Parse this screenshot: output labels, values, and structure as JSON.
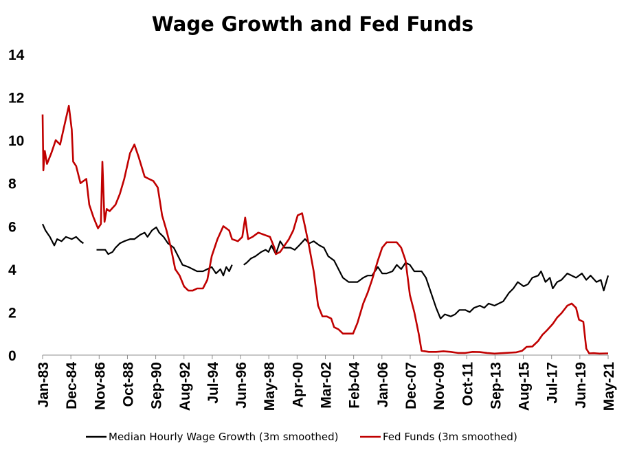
{
  "chart_data": {
    "type": "line",
    "title": "Wage Growth and Fed Funds",
    "xlabel": "",
    "ylabel": "",
    "ylim": [
      0,
      14
    ],
    "yticks": [
      "0",
      "2",
      "4",
      "6",
      "8",
      "10",
      "12",
      "14"
    ],
    "xticks": [
      "Jan-83",
      "Dec-84",
      "Nov-86",
      "Oct-88",
      "Sep-90",
      "Aug-92",
      "Jul-94",
      "Jun-96",
      "May-98",
      "Apr-00",
      "Mar-02",
      "Feb-04",
      "Jan-06",
      "Dec-07",
      "Nov-09",
      "Oct-11",
      "Sep-13",
      "Aug-15",
      "Jul-17",
      "Jun-19",
      "May-21"
    ],
    "legend_position": "bottom",
    "grid": false,
    "series": [
      {
        "name": "Median Hourly Wage Growth (3m smoothed)",
        "color": "#000000",
        "points": [
          [
            1983.0,
            6.1
          ],
          [
            1983.2,
            5.8
          ],
          [
            1983.5,
            5.5
          ],
          [
            1983.8,
            5.1
          ],
          [
            1984.0,
            5.4
          ],
          [
            1984.3,
            5.3
          ],
          [
            1984.6,
            5.5
          ],
          [
            1985.0,
            5.4
          ],
          [
            1985.3,
            5.5
          ],
          [
            1985.6,
            5.3
          ],
          [
            1985.8,
            5.2
          ],
          null,
          [
            1986.7,
            4.9
          ],
          [
            1987.0,
            4.9
          ],
          [
            1987.3,
            4.9
          ],
          [
            1987.5,
            4.7
          ],
          [
            1987.8,
            4.8
          ],
          [
            1988.0,
            5.0
          ],
          [
            1988.3,
            5.2
          ],
          [
            1988.6,
            5.3
          ],
          [
            1989.0,
            5.4
          ],
          [
            1989.3,
            5.4
          ],
          [
            1989.7,
            5.6
          ],
          [
            1990.0,
            5.7
          ],
          [
            1990.2,
            5.5
          ],
          [
            1990.5,
            5.8
          ],
          [
            1990.8,
            5.95
          ],
          [
            1991.0,
            5.7
          ],
          [
            1991.3,
            5.5
          ],
          [
            1991.6,
            5.2
          ],
          [
            1992.0,
            5.0
          ],
          [
            1992.3,
            4.6
          ],
          [
            1992.6,
            4.2
          ],
          [
            1993.0,
            4.1
          ],
          [
            1993.3,
            4.0
          ],
          [
            1993.6,
            3.9
          ],
          [
            1994.0,
            3.9
          ],
          [
            1994.3,
            4.0
          ],
          [
            1994.6,
            4.1
          ],
          [
            1994.9,
            3.8
          ],
          [
            1995.2,
            4.0
          ],
          [
            1995.4,
            3.7
          ],
          [
            1995.6,
            4.1
          ],
          [
            1995.8,
            3.9
          ],
          [
            1996.0,
            4.2
          ],
          null,
          [
            1996.8,
            4.2
          ],
          [
            1997.0,
            4.3
          ],
          [
            1997.3,
            4.5
          ],
          [
            1997.6,
            4.6
          ],
          [
            1998.0,
            4.8
          ],
          [
            1998.3,
            4.9
          ],
          [
            1998.5,
            4.8
          ],
          [
            1998.7,
            5.1
          ],
          [
            1999.0,
            4.7
          ],
          [
            1999.3,
            5.3
          ],
          [
            1999.6,
            5.0
          ],
          [
            2000.0,
            5.0
          ],
          [
            2000.3,
            4.9
          ],
          [
            2000.6,
            5.1
          ],
          [
            2001.0,
            5.4
          ],
          [
            2001.3,
            5.2
          ],
          [
            2001.6,
            5.3
          ],
          [
            2002.0,
            5.1
          ],
          [
            2002.3,
            5.0
          ],
          [
            2002.6,
            4.6
          ],
          [
            2003.0,
            4.4
          ],
          [
            2003.3,
            4.0
          ],
          [
            2003.6,
            3.6
          ],
          [
            2004.0,
            3.4
          ],
          [
            2004.3,
            3.4
          ],
          [
            2004.6,
            3.4
          ],
          [
            2005.0,
            3.6
          ],
          [
            2005.3,
            3.7
          ],
          [
            2005.6,
            3.7
          ],
          [
            2006.0,
            4.1
          ],
          [
            2006.3,
            3.8
          ],
          [
            2006.6,
            3.8
          ],
          [
            2007.0,
            3.9
          ],
          [
            2007.3,
            4.2
          ],
          [
            2007.6,
            4.0
          ],
          [
            2007.9,
            4.3
          ],
          [
            2008.2,
            4.2
          ],
          [
            2008.5,
            3.9
          ],
          [
            2008.8,
            3.9
          ],
          [
            2009.0,
            3.9
          ],
          [
            2009.3,
            3.6
          ],
          [
            2009.6,
            3.0
          ],
          [
            2010.0,
            2.2
          ],
          [
            2010.3,
            1.7
          ],
          [
            2010.6,
            1.9
          ],
          [
            2011.0,
            1.8
          ],
          [
            2011.3,
            1.9
          ],
          [
            2011.6,
            2.1
          ],
          [
            2012.0,
            2.1
          ],
          [
            2012.3,
            2.0
          ],
          [
            2012.6,
            2.2
          ],
          [
            2013.0,
            2.3
          ],
          [
            2013.3,
            2.2
          ],
          [
            2013.6,
            2.4
          ],
          [
            2014.0,
            2.3
          ],
          [
            2014.3,
            2.4
          ],
          [
            2014.6,
            2.5
          ],
          [
            2015.0,
            2.9
          ],
          [
            2015.3,
            3.1
          ],
          [
            2015.6,
            3.4
          ],
          [
            2016.0,
            3.2
          ],
          [
            2016.3,
            3.3
          ],
          [
            2016.6,
            3.6
          ],
          [
            2017.0,
            3.7
          ],
          [
            2017.2,
            3.9
          ],
          [
            2017.5,
            3.4
          ],
          [
            2017.8,
            3.6
          ],
          [
            2018.0,
            3.1
          ],
          [
            2018.3,
            3.4
          ],
          [
            2018.6,
            3.5
          ],
          [
            2019.0,
            3.8
          ],
          [
            2019.3,
            3.7
          ],
          [
            2019.6,
            3.6
          ],
          [
            2020.0,
            3.8
          ],
          [
            2020.3,
            3.5
          ],
          [
            2020.6,
            3.7
          ],
          [
            2021.0,
            3.4
          ],
          [
            2021.3,
            3.5
          ],
          [
            2021.5,
            3.0
          ],
          [
            2021.8,
            3.7
          ]
        ]
      },
      {
        "name": "Fed Funds (3m smoothed)",
        "color": "#C00000",
        "points": [
          [
            1983.0,
            11.2
          ],
          [
            1983.05,
            8.6
          ],
          [
            1983.15,
            9.5
          ],
          [
            1983.3,
            8.9
          ],
          [
            1983.6,
            9.4
          ],
          [
            1983.9,
            10.0
          ],
          [
            1984.2,
            9.8
          ],
          [
            1984.5,
            10.7
          ],
          [
            1984.8,
            11.6
          ],
          [
            1985.0,
            10.5
          ],
          [
            1985.1,
            9.0
          ],
          [
            1985.3,
            8.8
          ],
          [
            1985.6,
            8.0
          ],
          [
            1986.0,
            8.2
          ],
          [
            1986.2,
            7.0
          ],
          [
            1986.5,
            6.4
          ],
          [
            1986.8,
            5.9
          ],
          [
            1987.0,
            6.1
          ],
          [
            1987.1,
            9.0
          ],
          [
            1987.25,
            6.2
          ],
          [
            1987.4,
            6.8
          ],
          [
            1987.6,
            6.7
          ],
          [
            1988.0,
            7.0
          ],
          [
            1988.3,
            7.5
          ],
          [
            1988.6,
            8.2
          ],
          [
            1989.0,
            9.4
          ],
          [
            1989.3,
            9.8
          ],
          [
            1989.6,
            9.2
          ],
          [
            1990.0,
            8.3
          ],
          [
            1990.3,
            8.2
          ],
          [
            1990.6,
            8.1
          ],
          [
            1990.9,
            7.8
          ],
          [
            1991.2,
            6.5
          ],
          [
            1991.5,
            5.8
          ],
          [
            1991.8,
            5.0
          ],
          [
            1992.1,
            4.0
          ],
          [
            1992.4,
            3.7
          ],
          [
            1992.7,
            3.2
          ],
          [
            1993.0,
            3.0
          ],
          [
            1993.3,
            3.0
          ],
          [
            1993.6,
            3.1
          ],
          [
            1994.0,
            3.1
          ],
          [
            1994.3,
            3.5
          ],
          [
            1994.6,
            4.6
          ],
          [
            1995.0,
            5.4
          ],
          [
            1995.4,
            6.0
          ],
          [
            1995.8,
            5.8
          ],
          [
            1996.0,
            5.4
          ],
          [
            1996.4,
            5.3
          ],
          [
            1996.7,
            5.5
          ],
          [
            1996.9,
            6.4
          ],
          [
            1997.1,
            5.4
          ],
          [
            1997.4,
            5.5
          ],
          [
            1997.8,
            5.7
          ],
          [
            1998.2,
            5.6
          ],
          [
            1998.6,
            5.5
          ],
          [
            1998.9,
            5.0
          ],
          [
            1999.0,
            4.7
          ],
          [
            1999.3,
            4.8
          ],
          [
            1999.6,
            5.1
          ],
          [
            1999.9,
            5.4
          ],
          [
            2000.2,
            5.8
          ],
          [
            2000.5,
            6.5
          ],
          [
            2000.8,
            6.6
          ],
          [
            2001.0,
            6.0
          ],
          [
            2001.3,
            5.0
          ],
          [
            2001.6,
            3.9
          ],
          [
            2001.9,
            2.3
          ],
          [
            2002.2,
            1.8
          ],
          [
            2002.5,
            1.8
          ],
          [
            2002.8,
            1.7
          ],
          [
            2003.0,
            1.3
          ],
          [
            2003.3,
            1.2
          ],
          [
            2003.6,
            1.0
          ],
          [
            2004.0,
            1.0
          ],
          [
            2004.3,
            1.0
          ],
          [
            2004.6,
            1.5
          ],
          [
            2005.0,
            2.4
          ],
          [
            2005.3,
            2.9
          ],
          [
            2005.6,
            3.5
          ],
          [
            2006.0,
            4.4
          ],
          [
            2006.3,
            5.0
          ],
          [
            2006.6,
            5.25
          ],
          [
            2007.0,
            5.25
          ],
          [
            2007.3,
            5.25
          ],
          [
            2007.6,
            5.0
          ],
          [
            2007.9,
            4.4
          ],
          [
            2008.2,
            2.8
          ],
          [
            2008.5,
            2.0
          ],
          [
            2008.8,
            1.0
          ],
          [
            2009.0,
            0.2
          ],
          [
            2009.5,
            0.15
          ],
          [
            2010.0,
            0.15
          ],
          [
            2010.5,
            0.18
          ],
          [
            2011.0,
            0.15
          ],
          [
            2011.5,
            0.1
          ],
          [
            2012.0,
            0.1
          ],
          [
            2012.5,
            0.15
          ],
          [
            2013.0,
            0.14
          ],
          [
            2013.5,
            0.1
          ],
          [
            2014.0,
            0.07
          ],
          [
            2014.5,
            0.09
          ],
          [
            2015.0,
            0.11
          ],
          [
            2015.5,
            0.13
          ],
          [
            2015.9,
            0.2
          ],
          [
            2016.2,
            0.38
          ],
          [
            2016.6,
            0.4
          ],
          [
            2017.0,
            0.66
          ],
          [
            2017.3,
            0.95
          ],
          [
            2017.6,
            1.15
          ],
          [
            2018.0,
            1.45
          ],
          [
            2018.3,
            1.75
          ],
          [
            2018.6,
            1.95
          ],
          [
            2019.0,
            2.3
          ],
          [
            2019.3,
            2.4
          ],
          [
            2019.6,
            2.2
          ],
          [
            2019.8,
            1.65
          ],
          [
            2020.1,
            1.55
          ],
          [
            2020.3,
            0.3
          ],
          [
            2020.5,
            0.08
          ],
          [
            2020.8,
            0.09
          ],
          [
            2021.2,
            0.07
          ],
          [
            2021.8,
            0.08
          ]
        ]
      }
    ]
  }
}
